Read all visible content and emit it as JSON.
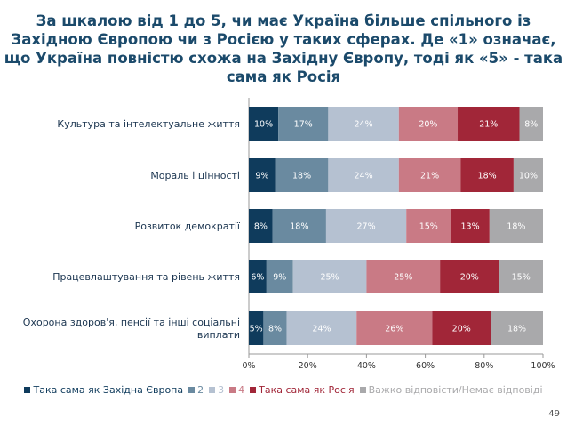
{
  "title": "За шкалою від 1 до 5, чи має Україна більше спільного із Західною Європою чи з Росією у таких сферах. Де «1» означає, що Україна повністю схожа на Західну Європу, тоді як «5» - така сама як Росія",
  "page_number": "49",
  "chart_data": {
    "type": "bar",
    "orientation": "horizontal",
    "stacked": true,
    "categories": [
      "Культура та інтелектуальне життя",
      "Мораль і цінності",
      "Розвиток демократії",
      "Працевлаштування та рівень життя",
      "Охорона здоров'я, пенсії та інші соціальні виплати"
    ],
    "series": [
      {
        "name": "Така сама як Західна Європа",
        "color": "#0f3b5c",
        "values": [
          10,
          9,
          8,
          6,
          5
        ]
      },
      {
        "name": "2",
        "color": "#6a8aa0",
        "values": [
          17,
          18,
          18,
          9,
          8
        ]
      },
      {
        "name": "3",
        "color": "#b5c1d1",
        "values": [
          24,
          24,
          27,
          25,
          24
        ]
      },
      {
        "name": "4",
        "color": "#c97a85",
        "values": [
          20,
          21,
          15,
          25,
          26
        ]
      },
      {
        "name": "Така сама як Росія",
        "color": "#a12638",
        "values": [
          21,
          18,
          13,
          20,
          20
        ]
      },
      {
        "name": "Важко відповісти/Немає відповіді",
        "color": "#a9a9ab",
        "values": [
          8,
          10,
          18,
          15,
          18
        ]
      }
    ],
    "xticks": [
      "0%",
      "20%",
      "40%",
      "60%",
      "80%",
      "100%"
    ],
    "xlim": [
      0,
      100
    ],
    "legend_position": "bottom",
    "legend_text_colors": [
      "#0f3b5c",
      "#6a8aa0",
      "#b5c1d1",
      "#c97a85",
      "#a12638",
      "#a9a9ab"
    ]
  }
}
